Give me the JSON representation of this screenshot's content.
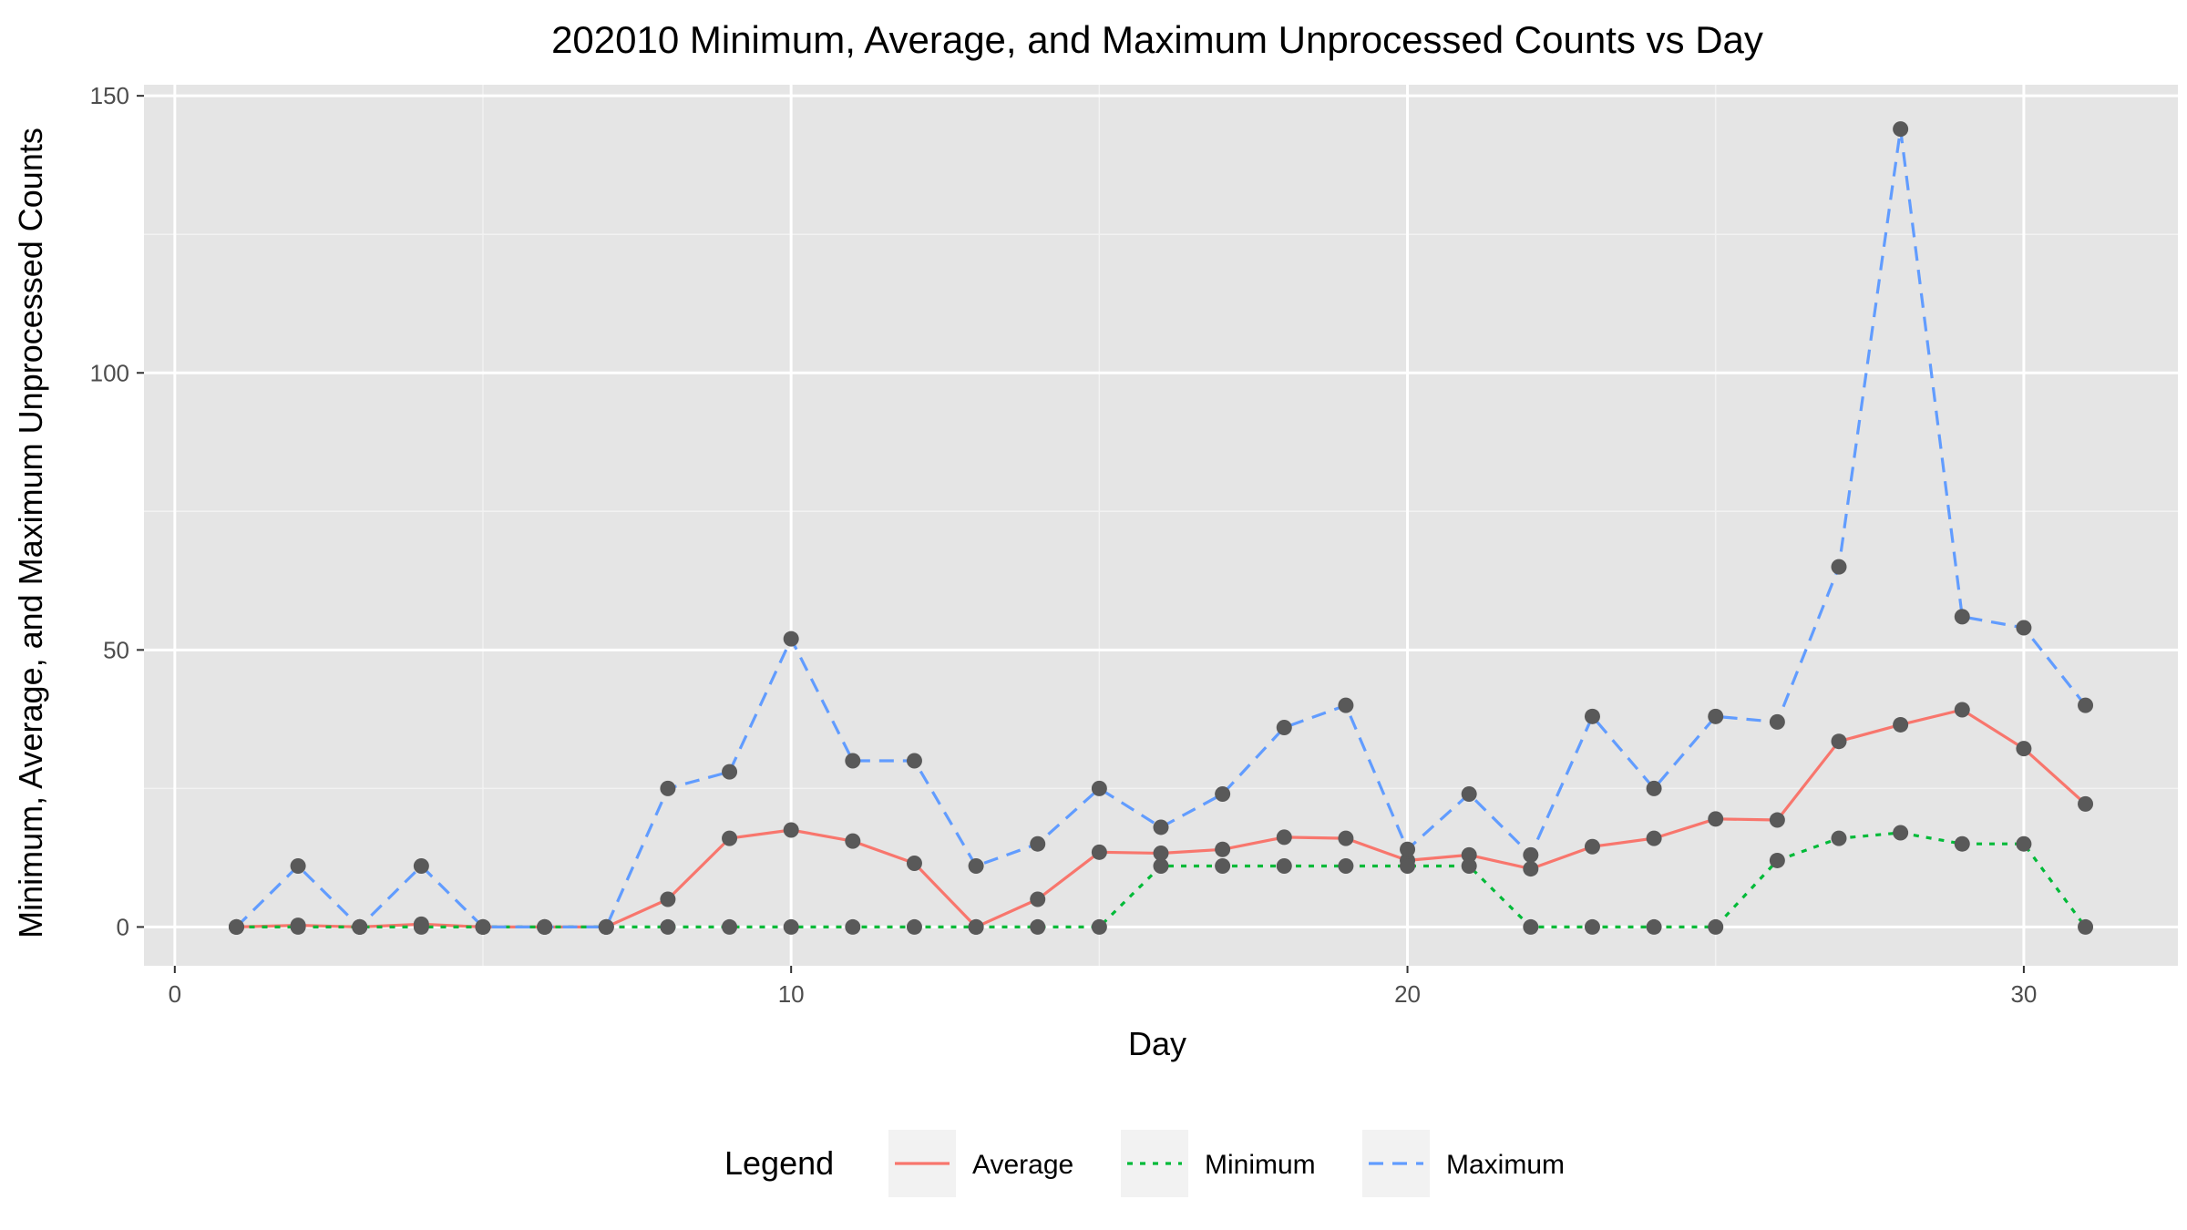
{
  "chart_data": {
    "type": "line",
    "title": "202010 Minimum, Average, and Maximum Unprocessed Counts vs Day",
    "xlabel": "Day",
    "ylabel": "Minimum, Average, and Maximum Unprocessed Counts",
    "xlim": [
      -0.5,
      32.5
    ],
    "ylim": [
      -7,
      152
    ],
    "x_ticks": [
      0,
      10,
      20,
      30
    ],
    "y_ticks": [
      0,
      50,
      100,
      150
    ],
    "grid": true,
    "legend": {
      "title": "Legend",
      "position": "bottom"
    },
    "x": [
      1,
      2,
      3,
      4,
      5,
      6,
      7,
      8,
      9,
      10,
      11,
      12,
      13,
      14,
      15,
      16,
      17,
      18,
      19,
      20,
      21,
      22,
      23,
      24,
      25,
      26,
      27,
      28,
      29,
      30,
      31
    ],
    "series": [
      {
        "name": "Average",
        "color": "#F8766D",
        "dash": "solid",
        "values": [
          0,
          0.3,
          0,
          0.5,
          0,
          0,
          0,
          5,
          16,
          17.5,
          15.5,
          11.5,
          0,
          5,
          13.5,
          13.3,
          14,
          16.2,
          16,
          12,
          13,
          10.5,
          14.5,
          16,
          19.5,
          19.3,
          33.5,
          36.5,
          39.2,
          32.2,
          22.2
        ]
      },
      {
        "name": "Minimum",
        "color": "#00BA38",
        "dash": "dotted",
        "values": [
          0,
          0,
          0,
          0,
          0,
          0,
          0,
          0,
          0,
          0,
          0,
          0,
          0,
          0,
          0,
          11,
          11,
          11,
          11,
          11,
          11,
          0,
          0,
          0,
          0,
          12,
          16,
          17,
          15,
          15,
          0
        ]
      },
      {
        "name": "Maximum",
        "color": "#619CFF",
        "dash": "dashed",
        "values": [
          0,
          11,
          0,
          11,
          0,
          0,
          0,
          25,
          28,
          52,
          30,
          30,
          11,
          15,
          25,
          18,
          24,
          36,
          40,
          14,
          24,
          13,
          38,
          25,
          38,
          37,
          65,
          144,
          56,
          54,
          40
        ]
      }
    ],
    "point_color": "#595959",
    "panel_color": "#E5E5E5"
  }
}
